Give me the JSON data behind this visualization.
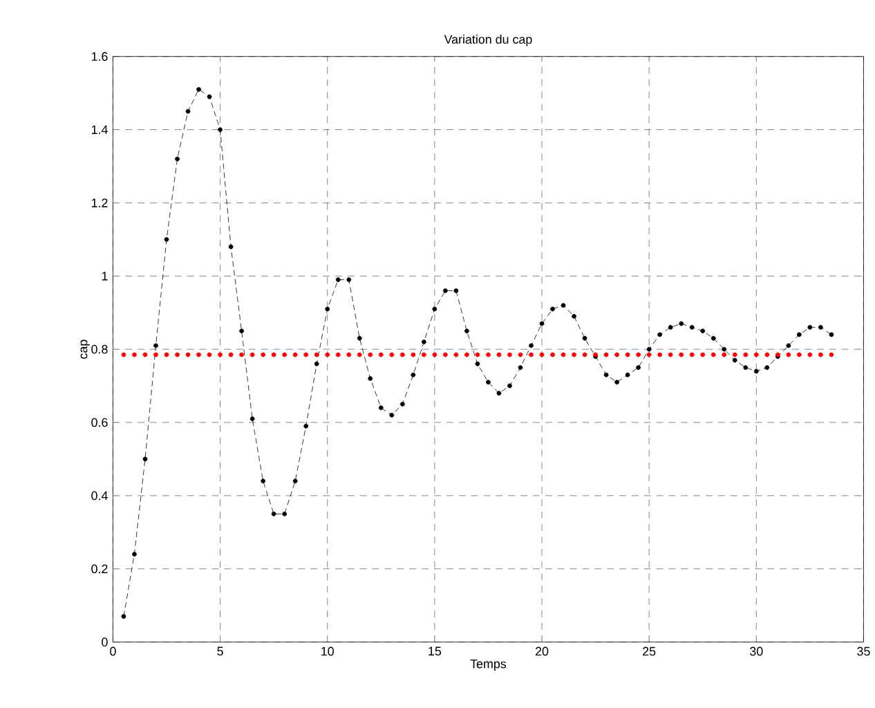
{
  "chart_data": {
    "type": "line",
    "title": "Variation du cap",
    "xlabel": "Temps",
    "ylabel": "cap",
    "x": [
      0.5,
      1,
      1.5,
      2,
      2.5,
      3,
      3.5,
      4,
      4.5,
      5,
      5.5,
      6,
      6.5,
      7,
      7.5,
      8,
      8.5,
      9,
      9.5,
      10,
      10.5,
      11,
      11.5,
      12,
      12.5,
      13,
      13.5,
      14,
      14.5,
      15,
      15.5,
      16,
      16.5,
      17,
      17.5,
      18,
      18.5,
      19,
      19.5,
      20,
      20.5,
      21,
      21.5,
      22,
      22.5,
      23,
      23.5,
      24,
      24.5,
      25,
      25.5,
      26,
      26.5,
      27,
      27.5,
      28,
      28.5,
      29,
      29.5,
      30,
      30.5,
      31,
      31.5,
      32,
      32.5,
      33,
      33.5
    ],
    "series": [
      {
        "color": "#000000",
        "marker": "circle",
        "line_style": "dashed",
        "values": [
          0.07,
          0.24,
          0.5,
          0.81,
          1.1,
          1.32,
          1.45,
          1.51,
          1.49,
          1.4,
          1.08,
          0.85,
          0.61,
          0.44,
          0.35,
          0.35,
          0.44,
          0.59,
          0.76,
          0.91,
          0.99,
          0.99,
          0.83,
          0.72,
          0.64,
          0.62,
          0.65,
          0.73,
          0.82,
          0.91,
          0.96,
          0.96,
          0.85,
          0.76,
          0.71,
          0.68,
          0.7,
          0.75,
          0.81,
          0.87,
          0.91,
          0.92,
          0.89,
          0.83,
          0.78,
          0.73,
          0.71,
          0.73,
          0.75,
          0.8,
          0.84,
          0.86,
          0.87,
          0.86,
          0.85,
          0.83,
          0.8,
          0.77,
          0.75,
          0.74,
          0.75,
          0.78,
          0.81,
          0.84,
          0.86,
          0.86,
          0.84
        ]
      },
      {
        "type": "scatter",
        "color": "#ff0000",
        "marker": "circle",
        "values": [
          0.785,
          0.785,
          0.785,
          0.785,
          0.785,
          0.785,
          0.785,
          0.785,
          0.785,
          0.785,
          0.785,
          0.785,
          0.785,
          0.785,
          0.785,
          0.785,
          0.785,
          0.785,
          0.785,
          0.785,
          0.785,
          0.785,
          0.785,
          0.785,
          0.785,
          0.785,
          0.785,
          0.785,
          0.785,
          0.785,
          0.785,
          0.785,
          0.785,
          0.785,
          0.785,
          0.785,
          0.785,
          0.785,
          0.785,
          0.785,
          0.785,
          0.785,
          0.785,
          0.785,
          0.785,
          0.785,
          0.785,
          0.785,
          0.785,
          0.785,
          0.785,
          0.785,
          0.785,
          0.785,
          0.785,
          0.785,
          0.785,
          0.785,
          0.785,
          0.785,
          0.785,
          0.785,
          0.785,
          0.785,
          0.785,
          0.785,
          0.785
        ]
      }
    ],
    "xlim": [
      0,
      35
    ],
    "ylim": [
      0,
      1.6
    ],
    "xticks": [
      0,
      5,
      10,
      15,
      20,
      25,
      30,
      35
    ],
    "yticks": [
      0,
      0.2,
      0.4,
      0.6,
      0.8,
      1,
      1.2,
      1.4,
      1.6
    ],
    "grid": true
  }
}
